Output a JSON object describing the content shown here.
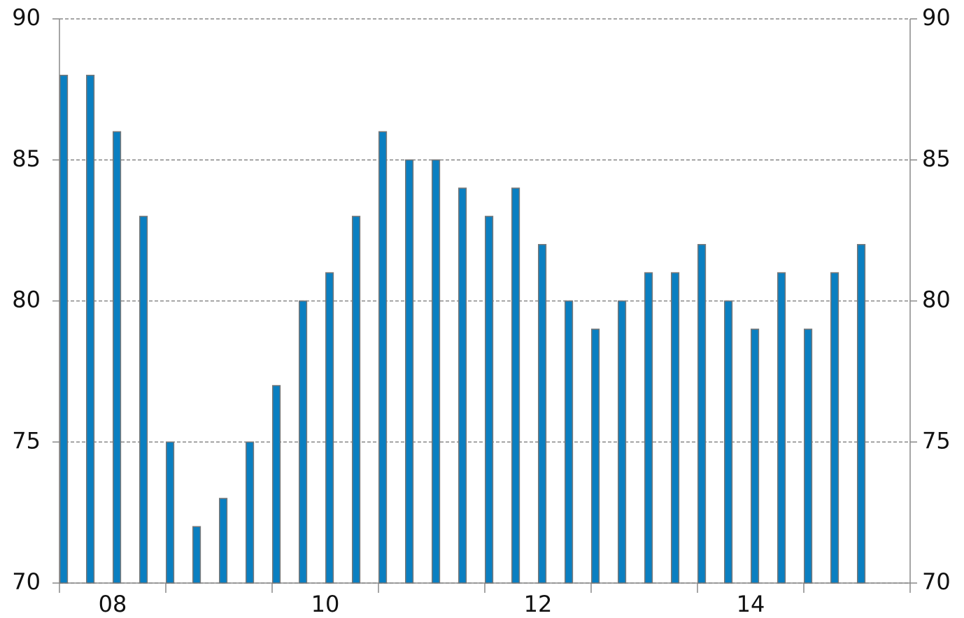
{
  "chart_data": {
    "type": "bar",
    "categories": [
      "08",
      null,
      null,
      null,
      null,
      null,
      null,
      null,
      "10",
      null,
      null,
      null,
      null,
      null,
      null,
      null,
      "12",
      null,
      null,
      null,
      null,
      null,
      null,
      null,
      "14",
      null,
      null,
      null,
      null,
      null,
      null
    ],
    "values": [
      88,
      88,
      86,
      83,
      75,
      72,
      73,
      75,
      77,
      80,
      81,
      83,
      86,
      85,
      85,
      84,
      83,
      84,
      82,
      80,
      79,
      80,
      81,
      81,
      82,
      80,
      79,
      81,
      79,
      81,
      82
    ],
    "color": "#0a7fc1",
    "ylim": [
      70,
      90
    ],
    "yticks": [
      70,
      75,
      80,
      85,
      90
    ],
    "grid": true
  }
}
